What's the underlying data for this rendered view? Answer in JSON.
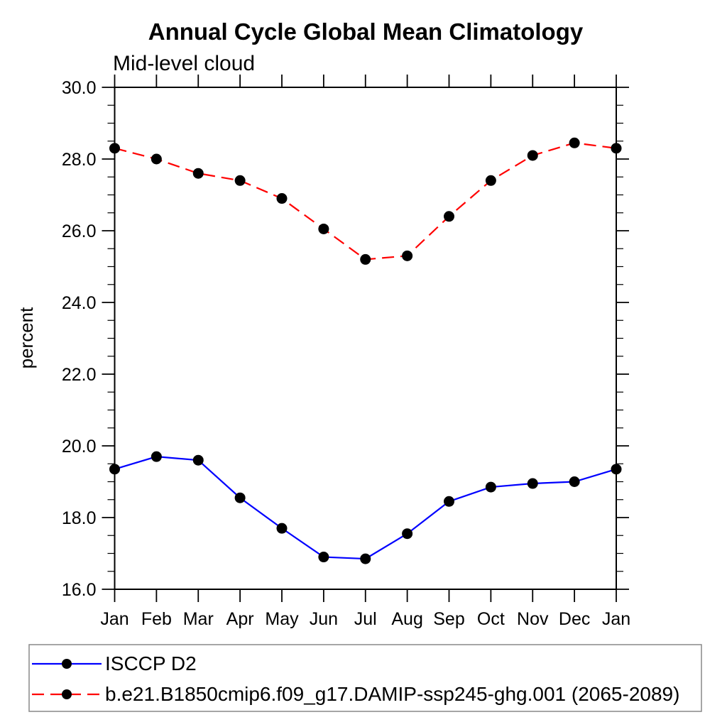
{
  "chart_data": {
    "type": "line",
    "title": "Annual Cycle Global Mean Climatology",
    "subtitle": "Mid-level cloud",
    "xlabel": "",
    "ylabel": "percent",
    "categories": [
      "Jan",
      "Feb",
      "Mar",
      "Apr",
      "May",
      "Jun",
      "Jul",
      "Aug",
      "Sep",
      "Oct",
      "Nov",
      "Dec",
      "Jan"
    ],
    "ylim": [
      16.0,
      30.0
    ],
    "y_major_ticks": [
      16.0,
      18.0,
      20.0,
      22.0,
      24.0,
      26.0,
      28.0,
      30.0
    ],
    "y_minor_step": 0.5,
    "y_tick_format_decimals": 1,
    "grid": false,
    "legend_position": "bottom-left",
    "marker": "filled-circle",
    "marker_color": "#000000",
    "series": [
      {
        "name": "ISCCP D2",
        "color": "#0000ff",
        "dash": "solid",
        "values": [
          19.35,
          19.7,
          19.6,
          18.55,
          17.7,
          16.9,
          16.85,
          17.55,
          18.45,
          18.85,
          18.95,
          19.0,
          19.35
        ]
      },
      {
        "name": "b.e21.B1850cmip6.f09_g17.DAMIP-ssp245-ghg.001 (2065-2089)",
        "color": "#ff0000",
        "dash": "dashed",
        "values": [
          28.3,
          28.0,
          27.6,
          27.4,
          26.9,
          26.05,
          25.2,
          25.3,
          26.4,
          27.4,
          28.1,
          28.45,
          28.3
        ]
      }
    ]
  }
}
